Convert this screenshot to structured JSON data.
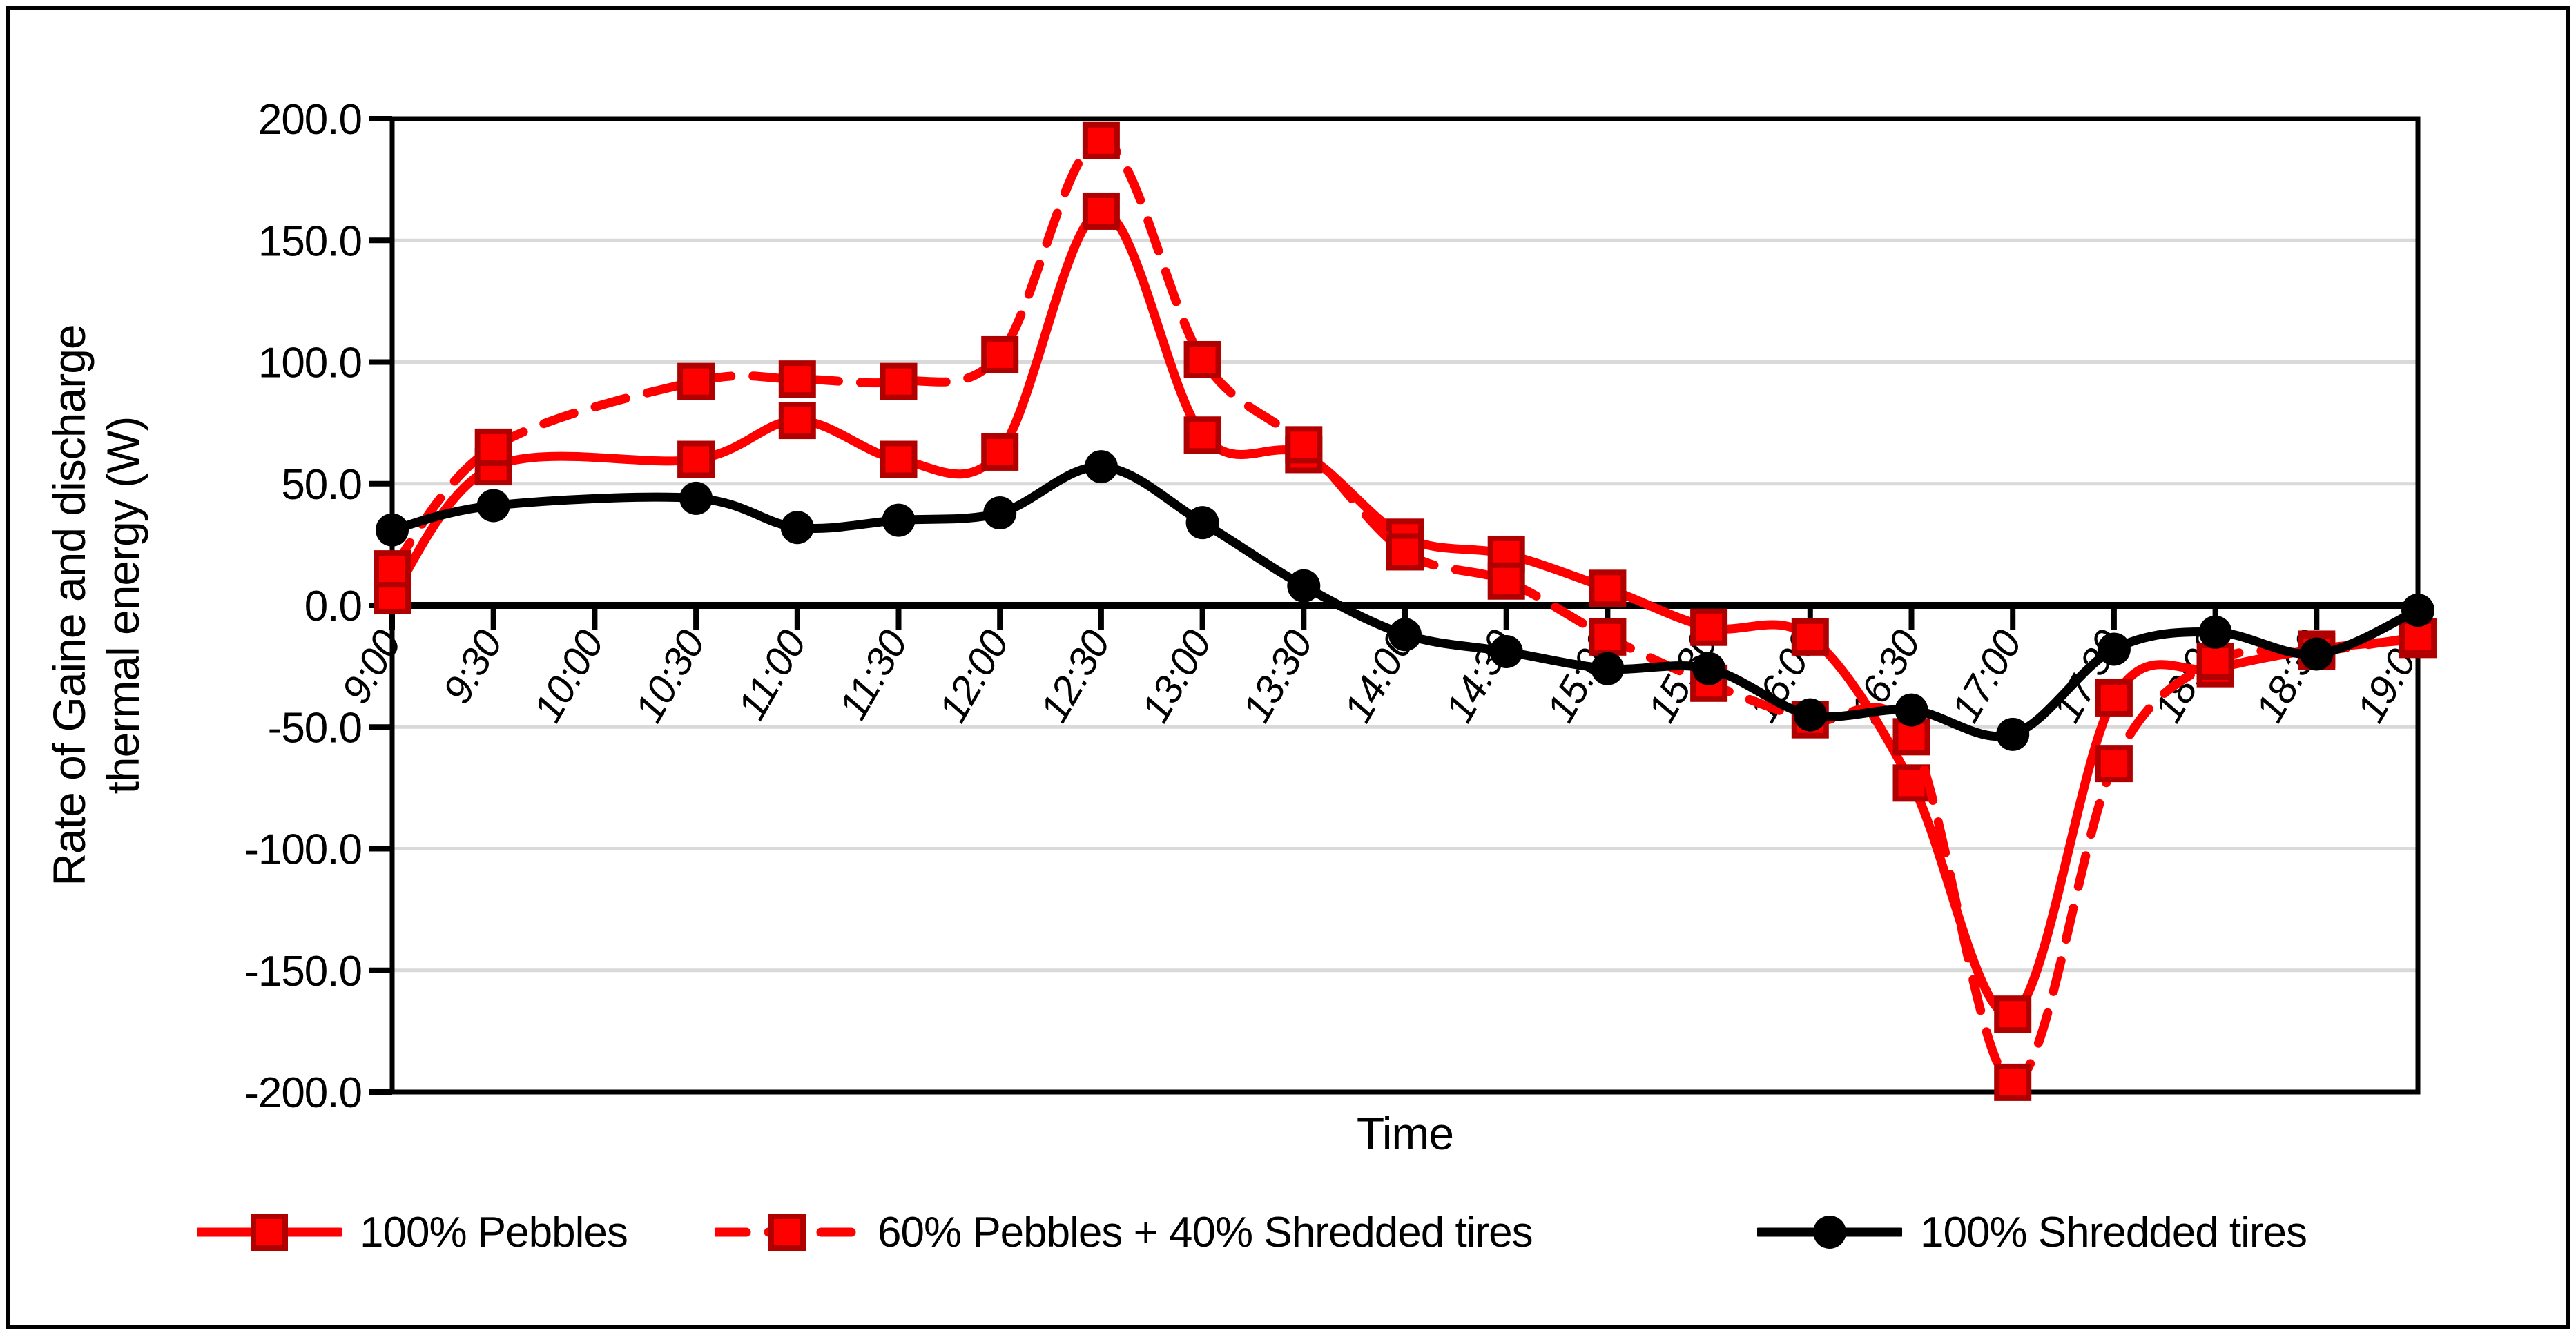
{
  "figure": {
    "background": "#ffffff",
    "border_color": "#000000"
  },
  "chart_data": {
    "type": "line",
    "title": "",
    "xlabel": "Time",
    "ylabel": "Rate of Gaine and discharge thermal energy (W)",
    "ylabel_lines": [
      "Rate of Gaine and discharge",
      "thermal energy (W)"
    ],
    "ylim": [
      -200,
      200
    ],
    "ytick_step": 50,
    "ytick_labels": [
      "200.0",
      "150.0",
      "100.0",
      "50.0",
      "0.0",
      "-50.0",
      "-100.0",
      "-150.0",
      "-200.0"
    ],
    "grid": true,
    "gridline_color": "#d9d9d9",
    "axis_color": "#000000",
    "legend_position": "bottom",
    "categories": [
      "9:00",
      "9:30",
      "10:00",
      "10:30",
      "11:00",
      "11:30",
      "12:00",
      "12:30",
      "13:00",
      "13:30",
      "14:00",
      "14:30",
      "15:00",
      "15:30",
      "16:00",
      "16:30",
      "17:00",
      "17:30",
      "18:00",
      "18:30",
      "19:00"
    ],
    "series": [
      {
        "name": "100% Pebbles",
        "color": "#ff0000",
        "marker_border": "#b00000",
        "style": "solid",
        "marker": "square",
        "values": [
          4,
          57,
          null,
          60,
          76,
          60,
          63,
          162,
          70,
          62,
          28,
          21,
          7,
          -9,
          -13,
          -73,
          -168,
          -38,
          -26,
          -18,
          -14
        ]
      },
      {
        "name": "60% Pebbles + 40% Shredded tires",
        "color": "#ff0000",
        "marker_border": "#b00000",
        "style": "dashed",
        "marker": "square",
        "values": [
          15,
          65,
          null,
          92,
          93,
          92,
          103,
          191,
          101,
          66,
          22,
          10,
          -13,
          -32,
          -47,
          -54,
          -196,
          -65,
          -23,
          -19,
          -13
        ]
      },
      {
        "name": "100% Shredded tires",
        "color": "#000000",
        "marker_border": "#000000",
        "style": "solid",
        "marker": "circle",
        "values": [
          31,
          41,
          null,
          44,
          32,
          35,
          38,
          57,
          34,
          8,
          -12,
          -19,
          -26,
          -26,
          -45,
          -43,
          -53,
          -18,
          -11,
          -20,
          -2
        ]
      }
    ]
  }
}
